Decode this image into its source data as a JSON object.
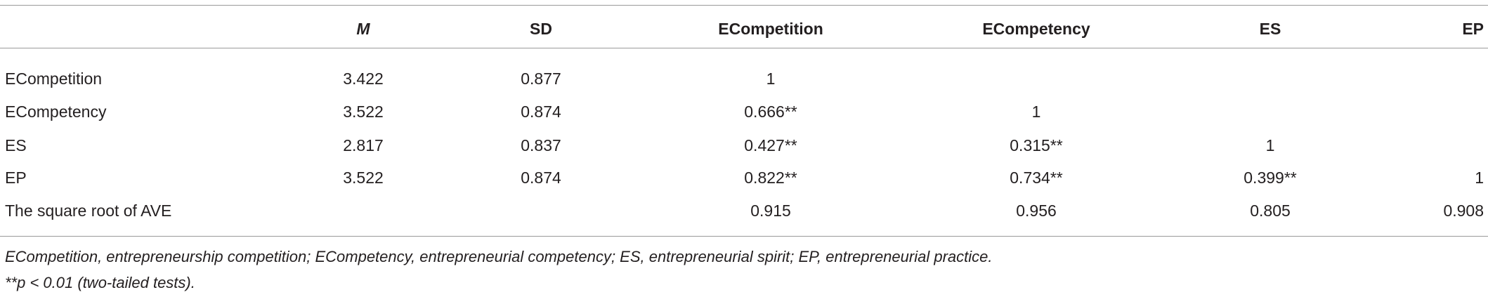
{
  "table": {
    "header": [
      "M",
      "SD",
      "ECompetition",
      "ECompetency",
      "ES",
      "EP"
    ],
    "rows": [
      {
        "label": "ECompetition",
        "cells": [
          "3.422",
          "0.877",
          "1",
          null,
          null,
          null
        ]
      },
      {
        "label": "ECompetency",
        "cells": [
          "3.522",
          "0.874",
          "0.666**",
          "1",
          null,
          null
        ]
      },
      {
        "label": "ES",
        "cells": [
          "2.817",
          "0.837",
          "0.427**",
          "0.315**",
          "1",
          null
        ]
      },
      {
        "label": "EP",
        "cells": [
          "3.522",
          "0.874",
          "0.822**",
          "0.734**",
          "0.399**",
          "1"
        ]
      },
      {
        "label": "The square root of AVE",
        "cells": [
          null,
          null,
          "0.915",
          "0.956",
          "0.805",
          "0.908"
        ]
      }
    ]
  },
  "footnotes": [
    "ECompetition, entrepreneurship competition; ECompetency, entrepreneurial competency; ES, entrepreneurial spirit; EP, entrepreneurial practice.",
    "**p < 0.01 (two-tailed tests)."
  ]
}
